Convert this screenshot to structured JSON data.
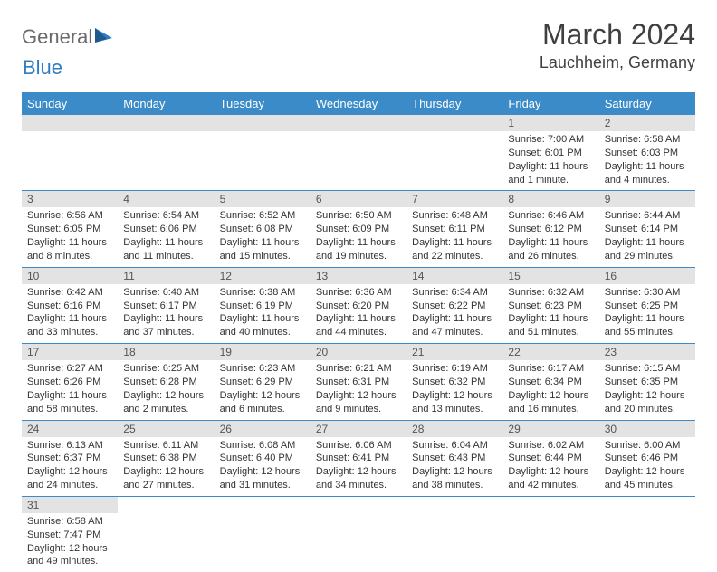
{
  "logo": {
    "textA": "General",
    "textB": "Blue"
  },
  "title": "March 2024",
  "location": "Lauchheim, Germany",
  "colors": {
    "header_bg": "#3b8bc8",
    "header_fg": "#ffffff",
    "daynum_bg": "#e3e3e3",
    "row_border": "#3b8bc8",
    "logo_gray": "#6a6a6a",
    "logo_blue": "#2f7cc2"
  },
  "weekdays": [
    "Sunday",
    "Monday",
    "Tuesday",
    "Wednesday",
    "Thursday",
    "Friday",
    "Saturday"
  ],
  "weeks": [
    [
      null,
      null,
      null,
      null,
      null,
      {
        "n": "1",
        "sr": "Sunrise: 7:00 AM",
        "ss": "Sunset: 6:01 PM",
        "dl": "Daylight: 11 hours and 1 minute."
      },
      {
        "n": "2",
        "sr": "Sunrise: 6:58 AM",
        "ss": "Sunset: 6:03 PM",
        "dl": "Daylight: 11 hours and 4 minutes."
      }
    ],
    [
      {
        "n": "3",
        "sr": "Sunrise: 6:56 AM",
        "ss": "Sunset: 6:05 PM",
        "dl": "Daylight: 11 hours and 8 minutes."
      },
      {
        "n": "4",
        "sr": "Sunrise: 6:54 AM",
        "ss": "Sunset: 6:06 PM",
        "dl": "Daylight: 11 hours and 11 minutes."
      },
      {
        "n": "5",
        "sr": "Sunrise: 6:52 AM",
        "ss": "Sunset: 6:08 PM",
        "dl": "Daylight: 11 hours and 15 minutes."
      },
      {
        "n": "6",
        "sr": "Sunrise: 6:50 AM",
        "ss": "Sunset: 6:09 PM",
        "dl": "Daylight: 11 hours and 19 minutes."
      },
      {
        "n": "7",
        "sr": "Sunrise: 6:48 AM",
        "ss": "Sunset: 6:11 PM",
        "dl": "Daylight: 11 hours and 22 minutes."
      },
      {
        "n": "8",
        "sr": "Sunrise: 6:46 AM",
        "ss": "Sunset: 6:12 PM",
        "dl": "Daylight: 11 hours and 26 minutes."
      },
      {
        "n": "9",
        "sr": "Sunrise: 6:44 AM",
        "ss": "Sunset: 6:14 PM",
        "dl": "Daylight: 11 hours and 29 minutes."
      }
    ],
    [
      {
        "n": "10",
        "sr": "Sunrise: 6:42 AM",
        "ss": "Sunset: 6:16 PM",
        "dl": "Daylight: 11 hours and 33 minutes."
      },
      {
        "n": "11",
        "sr": "Sunrise: 6:40 AM",
        "ss": "Sunset: 6:17 PM",
        "dl": "Daylight: 11 hours and 37 minutes."
      },
      {
        "n": "12",
        "sr": "Sunrise: 6:38 AM",
        "ss": "Sunset: 6:19 PM",
        "dl": "Daylight: 11 hours and 40 minutes."
      },
      {
        "n": "13",
        "sr": "Sunrise: 6:36 AM",
        "ss": "Sunset: 6:20 PM",
        "dl": "Daylight: 11 hours and 44 minutes."
      },
      {
        "n": "14",
        "sr": "Sunrise: 6:34 AM",
        "ss": "Sunset: 6:22 PM",
        "dl": "Daylight: 11 hours and 47 minutes."
      },
      {
        "n": "15",
        "sr": "Sunrise: 6:32 AM",
        "ss": "Sunset: 6:23 PM",
        "dl": "Daylight: 11 hours and 51 minutes."
      },
      {
        "n": "16",
        "sr": "Sunrise: 6:30 AM",
        "ss": "Sunset: 6:25 PM",
        "dl": "Daylight: 11 hours and 55 minutes."
      }
    ],
    [
      {
        "n": "17",
        "sr": "Sunrise: 6:27 AM",
        "ss": "Sunset: 6:26 PM",
        "dl": "Daylight: 11 hours and 58 minutes."
      },
      {
        "n": "18",
        "sr": "Sunrise: 6:25 AM",
        "ss": "Sunset: 6:28 PM",
        "dl": "Daylight: 12 hours and 2 minutes."
      },
      {
        "n": "19",
        "sr": "Sunrise: 6:23 AM",
        "ss": "Sunset: 6:29 PM",
        "dl": "Daylight: 12 hours and 6 minutes."
      },
      {
        "n": "20",
        "sr": "Sunrise: 6:21 AM",
        "ss": "Sunset: 6:31 PM",
        "dl": "Daylight: 12 hours and 9 minutes."
      },
      {
        "n": "21",
        "sr": "Sunrise: 6:19 AM",
        "ss": "Sunset: 6:32 PM",
        "dl": "Daylight: 12 hours and 13 minutes."
      },
      {
        "n": "22",
        "sr": "Sunrise: 6:17 AM",
        "ss": "Sunset: 6:34 PM",
        "dl": "Daylight: 12 hours and 16 minutes."
      },
      {
        "n": "23",
        "sr": "Sunrise: 6:15 AM",
        "ss": "Sunset: 6:35 PM",
        "dl": "Daylight: 12 hours and 20 minutes."
      }
    ],
    [
      {
        "n": "24",
        "sr": "Sunrise: 6:13 AM",
        "ss": "Sunset: 6:37 PM",
        "dl": "Daylight: 12 hours and 24 minutes."
      },
      {
        "n": "25",
        "sr": "Sunrise: 6:11 AM",
        "ss": "Sunset: 6:38 PM",
        "dl": "Daylight: 12 hours and 27 minutes."
      },
      {
        "n": "26",
        "sr": "Sunrise: 6:08 AM",
        "ss": "Sunset: 6:40 PM",
        "dl": "Daylight: 12 hours and 31 minutes."
      },
      {
        "n": "27",
        "sr": "Sunrise: 6:06 AM",
        "ss": "Sunset: 6:41 PM",
        "dl": "Daylight: 12 hours and 34 minutes."
      },
      {
        "n": "28",
        "sr": "Sunrise: 6:04 AM",
        "ss": "Sunset: 6:43 PM",
        "dl": "Daylight: 12 hours and 38 minutes."
      },
      {
        "n": "29",
        "sr": "Sunrise: 6:02 AM",
        "ss": "Sunset: 6:44 PM",
        "dl": "Daylight: 12 hours and 42 minutes."
      },
      {
        "n": "30",
        "sr": "Sunrise: 6:00 AM",
        "ss": "Sunset: 6:46 PM",
        "dl": "Daylight: 12 hours and 45 minutes."
      }
    ],
    [
      {
        "n": "31",
        "sr": "Sunrise: 6:58 AM",
        "ss": "Sunset: 7:47 PM",
        "dl": "Daylight: 12 hours and 49 minutes."
      },
      null,
      null,
      null,
      null,
      null,
      null
    ]
  ]
}
